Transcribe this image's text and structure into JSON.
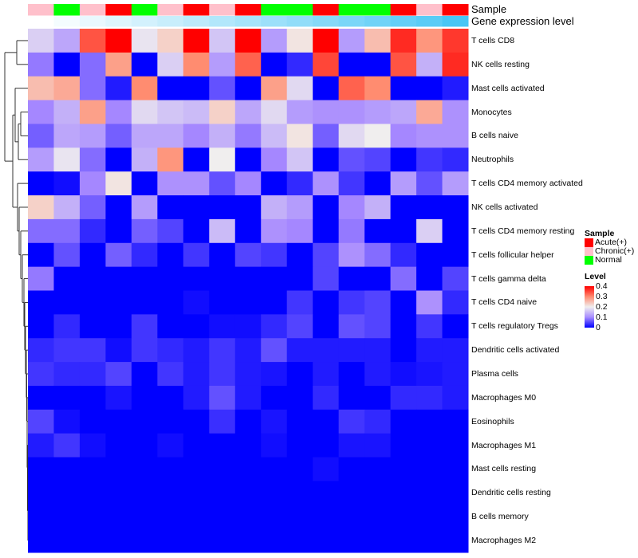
{
  "annotations": {
    "sample_label": "Sample",
    "gene_label": "Gene expression level",
    "sample": [
      "Chronic(+)",
      "Normal",
      "Chronic(+)",
      "Acute(+)",
      "Normal",
      "Chronic(+)",
      "Acute(+)",
      "Chronic(+)",
      "Acute(+)",
      "Normal",
      "Normal",
      "Acute(+)",
      "Normal",
      "Normal",
      "Acute(+)",
      "Chronic(+)",
      "Acute(+)"
    ],
    "gene_expression_level": [
      0.0,
      0.06,
      0.12,
      0.18,
      0.24,
      0.3,
      0.36,
      0.42,
      0.48,
      0.54,
      0.6,
      0.66,
      0.72,
      0.78,
      0.84,
      0.9,
      1.0
    ]
  },
  "legend": {
    "sample_title": "Sample",
    "sample_items": [
      {
        "label": "Acute(+)",
        "color": "#ff0000"
      },
      {
        "label": "Chronic(+)",
        "color": "#ffc0cb"
      },
      {
        "label": "Normal",
        "color": "#00ff00"
      }
    ],
    "level_title": "Level",
    "level_ticks": [
      "0.4",
      "0.3",
      "0.2",
      "0.1",
      "0"
    ]
  },
  "chart_data": {
    "type": "heatmap",
    "title": "",
    "value_range": [
      0,
      0.4
    ],
    "color_scale": {
      "low": "#0000ff",
      "mid": "#eeeeee",
      "high": "#ff0000"
    },
    "rows": [
      "T cells CD8",
      "NK cells resting",
      "Mast cells activated",
      "Monocytes",
      "B cells naive",
      "Neutrophils",
      "T cells CD4 memory activated",
      "NK cells activated",
      "T cells CD4 memory resting",
      "T cells follicular helper",
      "T cells gamma delta",
      "T cells CD4 naive",
      "T cells regulatory  Tregs",
      "Dendritic cells activated",
      "Plasma cells",
      "Macrophages M0",
      "Eosinophils",
      "Macrophages M1",
      "Mast cells resting",
      "Dendritic cells resting",
      "B cells memory",
      "Macrophages M2"
    ],
    "values": [
      [
        0.17,
        0.13,
        0.34,
        0.4,
        0.19,
        0.23,
        0.4,
        0.16,
        0.4,
        0.12,
        0.21,
        0.4,
        0.12,
        0.25,
        0.37,
        0.29,
        0.36
      ],
      [
        0.09,
        0,
        0.08,
        0.28,
        0,
        0.17,
        0.3,
        0.12,
        0.33,
        0,
        0.03,
        0.35,
        0,
        0,
        0.34,
        0.14,
        0.37
      ],
      [
        0.25,
        0.27,
        0.08,
        0.02,
        0.3,
        0,
        0,
        0.06,
        0,
        0.28,
        0.18,
        0,
        0.33,
        0.3,
        0,
        0,
        0.02
      ],
      [
        0.1,
        0.14,
        0.28,
        0.1,
        0.18,
        0.16,
        0.15,
        0.23,
        0.13,
        0.18,
        0.12,
        0.11,
        0.11,
        0.12,
        0.13,
        0.27,
        0.11
      ],
      [
        0.07,
        0.13,
        0.12,
        0.07,
        0.13,
        0.13,
        0.1,
        0.14,
        0.09,
        0.15,
        0.21,
        0.07,
        0.18,
        0.2,
        0.1,
        0.11,
        0.11
      ],
      [
        0.12,
        0.19,
        0.08,
        0,
        0.14,
        0.29,
        0,
        0.2,
        0,
        0.1,
        0.16,
        0,
        0.06,
        0.05,
        0,
        0.04,
        0.03
      ],
      [
        0,
        0.01,
        0.1,
        0.21,
        0,
        0.11,
        0.11,
        0.06,
        0.1,
        0,
        0.03,
        0.11,
        0.04,
        0,
        0.12,
        0.06,
        0.12
      ],
      [
        0.23,
        0.14,
        0.07,
        0,
        0.12,
        0,
        0,
        0,
        0,
        0.14,
        0.12,
        0,
        0.1,
        0.14,
        0,
        0,
        0
      ],
      [
        0.08,
        0.08,
        0.03,
        0,
        0.07,
        0.05,
        0,
        0.15,
        0,
        0.11,
        0.1,
        0,
        0.09,
        0,
        0,
        0.17,
        0
      ],
      [
        0,
        0.06,
        0,
        0.07,
        0.03,
        0,
        0.04,
        0,
        0.05,
        0.04,
        0,
        0.05,
        0.11,
        0.08,
        0.03,
        0,
        0
      ],
      [
        0.09,
        0,
        0,
        0,
        0,
        0,
        0,
        0,
        0,
        0,
        0,
        0.05,
        0,
        0,
        0.08,
        0,
        0.05
      ],
      [
        0,
        0,
        0,
        0,
        0,
        0,
        0.01,
        0,
        0,
        0,
        0.04,
        0,
        0.04,
        0.05,
        0,
        0.11,
        0.03
      ],
      [
        0,
        0.03,
        0,
        0,
        0.04,
        0,
        0,
        0.01,
        0.01,
        0.03,
        0.05,
        0,
        0.06,
        0.05,
        0,
        0.04,
        0
      ],
      [
        0.03,
        0.04,
        0.04,
        0.01,
        0.04,
        0.03,
        0.02,
        0.04,
        0.02,
        0.06,
        0.02,
        0.02,
        0.02,
        0.02,
        0,
        0.02,
        0.02
      ],
      [
        0.04,
        0.03,
        0.03,
        0.05,
        0,
        0.04,
        0.02,
        0.04,
        0.02,
        0.015,
        0,
        0.02,
        0,
        0.02,
        0.01,
        0.015,
        0.02
      ],
      [
        0,
        0,
        0,
        0.015,
        0,
        0,
        0.02,
        0.06,
        0.02,
        0,
        0,
        0.03,
        0,
        0,
        0.03,
        0.03,
        0.02
      ],
      [
        0.05,
        0.01,
        0,
        0,
        0,
        0,
        0,
        0.035,
        0,
        0.015,
        0,
        0,
        0.04,
        0.03,
        0,
        0,
        0
      ],
      [
        0.02,
        0.04,
        0.01,
        0,
        0,
        0.01,
        0,
        0,
        0,
        0.01,
        0,
        0,
        0.015,
        0.015,
        0,
        0,
        0
      ],
      [
        0,
        0,
        0,
        0,
        0,
        0,
        0,
        0,
        0,
        0,
        0,
        0.01,
        0,
        0,
        0,
        0,
        0
      ],
      [
        0,
        0,
        0,
        0,
        0,
        0,
        0,
        0,
        0,
        0,
        0,
        0,
        0,
        0,
        0,
        0,
        0
      ],
      [
        0,
        0,
        0,
        0,
        0,
        0,
        0,
        0,
        0,
        0,
        0,
        0,
        0,
        0,
        0,
        0,
        0
      ],
      [
        0,
        0,
        0,
        0,
        0,
        0,
        0,
        0,
        0,
        0,
        0,
        0,
        0,
        0,
        0,
        0,
        0
      ]
    ]
  }
}
